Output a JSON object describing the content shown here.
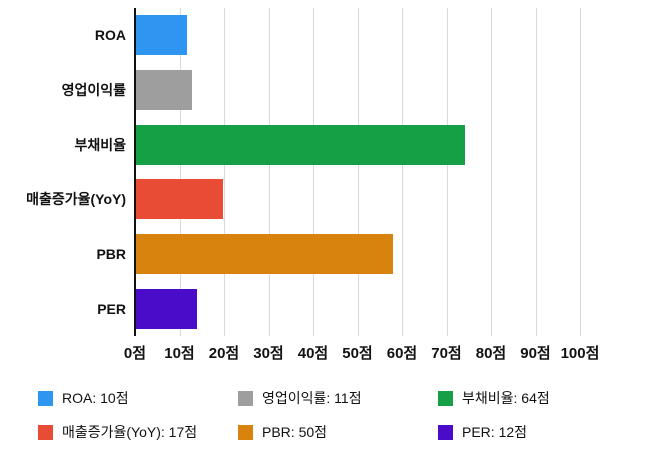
{
  "chart_data": {
    "type": "bar",
    "orientation": "horizontal",
    "title": "",
    "xlabel": "",
    "ylabel": "",
    "unit": "점",
    "categories": [
      "ROA",
      "영업이익률",
      "부채비율",
      "매출증가율(YoY)",
      "PBR",
      "PER"
    ],
    "values": [
      10,
      11,
      64,
      17,
      50,
      12
    ],
    "colors": [
      "#2e96f0",
      "#9e9e9e",
      "#15a046",
      "#e94c35",
      "#d9830f",
      "#4b0cc9"
    ],
    "xlim": [
      0,
      100
    ],
    "x_tick_values": [
      0,
      10,
      20,
      30,
      40,
      50,
      60,
      70,
      80,
      90,
      100
    ],
    "x_tick_labels": [
      "0점",
      "10점",
      "20점",
      "30점",
      "40점",
      "50점",
      "60점",
      "70점",
      "80점",
      "90점",
      "100점"
    ],
    "grid": true,
    "legend_position": "bottom",
    "legend_items": [
      {
        "label": "ROA: 10점",
        "color": "#2e96f0"
      },
      {
        "label": "영업이익률: 11점",
        "color": "#9e9e9e"
      },
      {
        "label": "부채비율: 64점",
        "color": "#15a046"
      },
      {
        "label": "매출증가율(YoY): 17점",
        "color": "#e94c35"
      },
      {
        "label": "PBR: 50점",
        "color": "#d9830f"
      },
      {
        "label": "PER: 12점",
        "color": "#4b0cc9"
      }
    ]
  }
}
